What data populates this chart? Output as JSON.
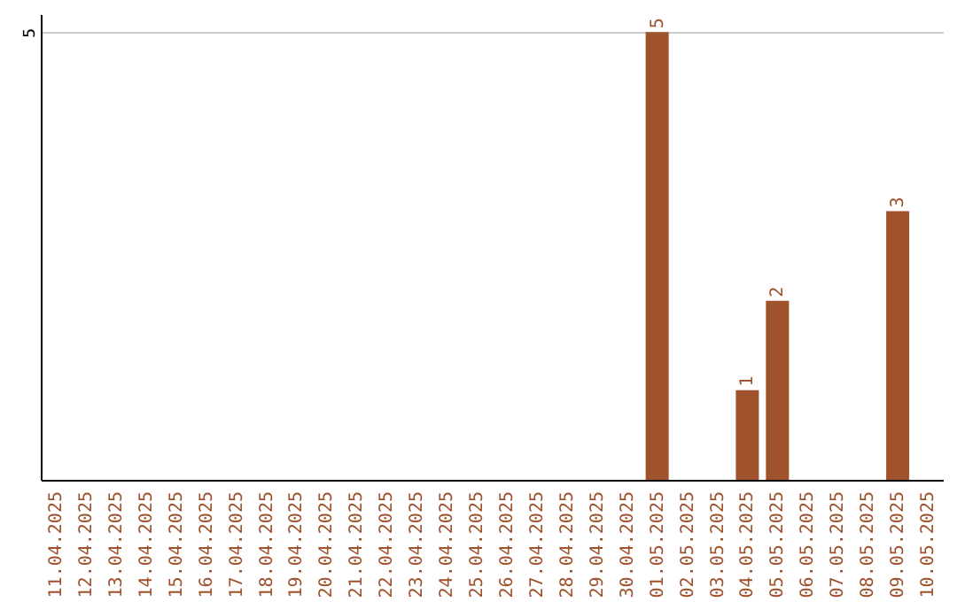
{
  "chart_data": {
    "type": "bar",
    "categories": [
      "11.04.2025",
      "12.04.2025",
      "13.04.2025",
      "14.04.2025",
      "15.04.2025",
      "16.04.2025",
      "17.04.2025",
      "18.04.2025",
      "19.04.2025",
      "20.04.2025",
      "21.04.2025",
      "22.04.2025",
      "23.04.2025",
      "24.04.2025",
      "25.04.2025",
      "26.04.2025",
      "27.04.2025",
      "28.04.2025",
      "29.04.2025",
      "30.04.2025",
      "01.05.2025",
      "02.05.2025",
      "03.05.2025",
      "04.05.2025",
      "05.05.2025",
      "06.05.2025",
      "07.05.2025",
      "08.05.2025",
      "09.05.2025",
      "10.05.2025"
    ],
    "values": [
      null,
      null,
      null,
      null,
      null,
      null,
      null,
      null,
      null,
      null,
      null,
      null,
      null,
      null,
      null,
      null,
      null,
      null,
      null,
      null,
      5,
      null,
      null,
      1,
      2,
      null,
      null,
      null,
      3,
      null
    ],
    "color": "#a0522d",
    "ylim": [
      0,
      5.2
    ],
    "yticks": [
      5
    ],
    "grid": "y",
    "data_labels": true
  }
}
